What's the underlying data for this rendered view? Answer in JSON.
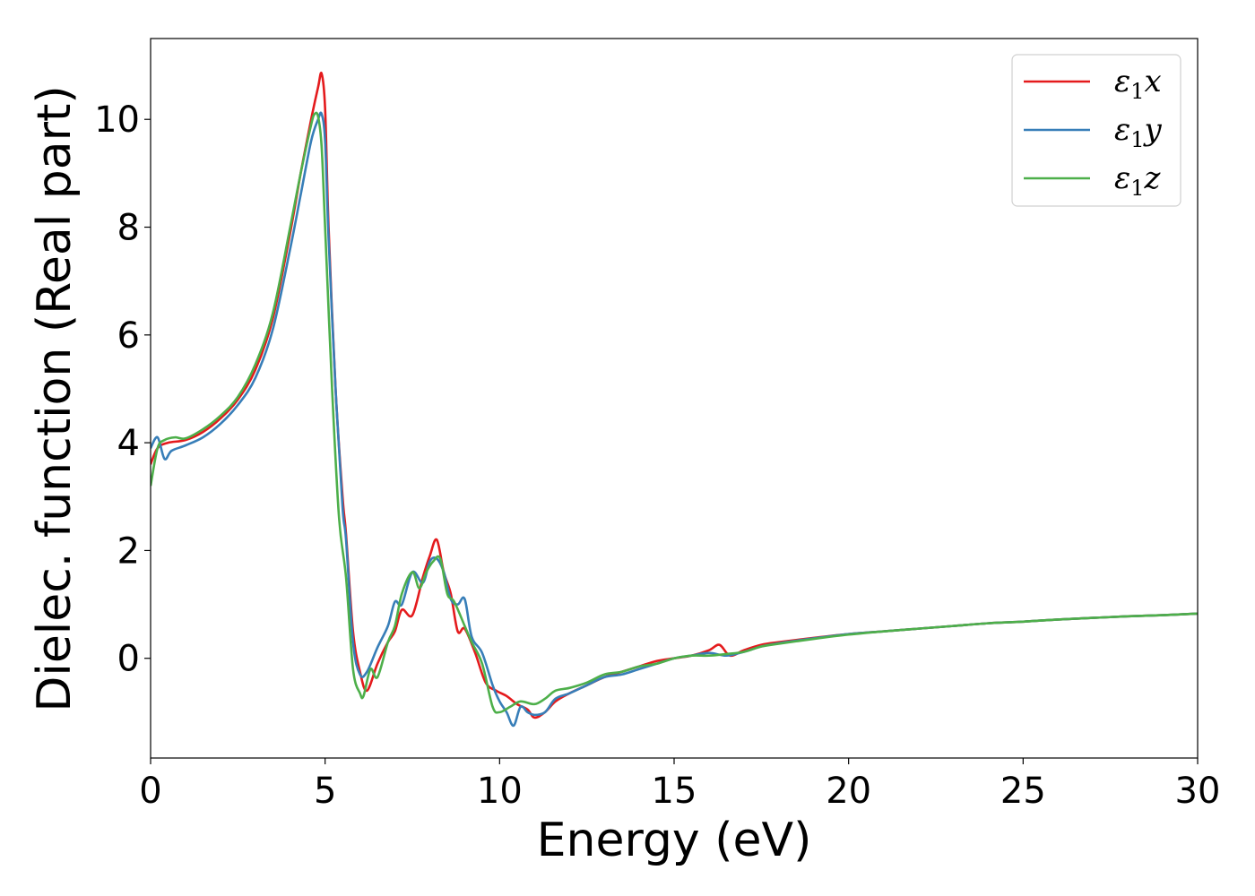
{
  "chart_data": {
    "type": "line",
    "title": "",
    "xlabel": "Energy (eV)",
    "ylabel": "Dielec. function (Real part)",
    "xlim": [
      0,
      30
    ],
    "ylim": [
      -1.85,
      11.5
    ],
    "xticks": [
      0,
      5,
      10,
      15,
      20,
      25,
      30
    ],
    "xtick_labels": [
      "0",
      "5",
      "10",
      "15",
      "20",
      "25",
      "30"
    ],
    "yticks": [
      0,
      2,
      4,
      6,
      8,
      10
    ],
    "ytick_labels": [
      "0",
      "2",
      "4",
      "6",
      "8",
      "10"
    ],
    "grid": false,
    "legend_position": "top-right",
    "series": [
      {
        "name": "ε1x",
        "legend": {
          "symbol": "ε",
          "sub": "1",
          "axis": "x"
        },
        "color": "#e41a1c",
        "x": [
          0,
          0.2,
          0.5,
          1.0,
          1.5,
          2.0,
          2.5,
          3.0,
          3.5,
          4.0,
          4.3,
          4.6,
          4.8,
          4.9,
          5.0,
          5.1,
          5.3,
          5.5,
          5.6,
          5.8,
          6.0,
          6.2,
          6.5,
          6.8,
          7.0,
          7.2,
          7.5,
          7.8,
          8.0,
          8.2,
          8.4,
          8.6,
          8.8,
          9.0,
          9.3,
          9.6,
          9.9,
          10.2,
          10.5,
          10.8,
          11.0,
          11.3,
          11.6,
          12.0,
          12.5,
          13.0,
          13.5,
          14.0,
          14.5,
          15.0,
          15.5,
          16.0,
          16.3,
          16.6,
          17.0,
          17.5,
          18.0,
          19.0,
          20.0,
          21.0,
          22.0,
          23.0,
          24.0,
          25.0,
          26.0,
          27.0,
          28.0,
          29.0,
          30.0
        ],
        "y": [
          3.6,
          3.9,
          4.0,
          4.05,
          4.2,
          4.45,
          4.8,
          5.35,
          6.3,
          7.9,
          9.0,
          10.0,
          10.6,
          10.85,
          10.2,
          8.0,
          5.0,
          3.0,
          2.3,
          0.5,
          -0.25,
          -0.6,
          -0.1,
          0.3,
          0.5,
          0.9,
          0.8,
          1.5,
          1.9,
          2.2,
          1.6,
          1.2,
          0.5,
          0.55,
          0.1,
          -0.45,
          -0.6,
          -0.7,
          -0.85,
          -0.95,
          -1.1,
          -1.0,
          -0.8,
          -0.65,
          -0.5,
          -0.35,
          -0.25,
          -0.15,
          -0.05,
          0.0,
          0.05,
          0.15,
          0.25,
          0.05,
          0.15,
          0.25,
          0.3,
          0.38,
          0.45,
          0.5,
          0.55,
          0.6,
          0.65,
          0.68,
          0.72,
          0.75,
          0.78,
          0.8,
          0.83
        ]
      },
      {
        "name": "ε1y",
        "legend": {
          "symbol": "ε",
          "sub": "1",
          "axis": "y"
        },
        "color": "#377eb8",
        "x": [
          0,
          0.2,
          0.4,
          0.6,
          1.0,
          1.5,
          2.0,
          2.5,
          3.0,
          3.5,
          4.0,
          4.3,
          4.6,
          4.8,
          4.9,
          5.0,
          5.1,
          5.3,
          5.5,
          5.6,
          5.8,
          6.0,
          6.2,
          6.5,
          6.8,
          7.0,
          7.2,
          7.5,
          7.8,
          8.0,
          8.2,
          8.4,
          8.6,
          8.8,
          9.0,
          9.2,
          9.5,
          9.8,
          10.0,
          10.2,
          10.4,
          10.6,
          10.8,
          11.0,
          11.3,
          11.6,
          12.0,
          12.5,
          13.0,
          13.5,
          14.0,
          14.5,
          15.0,
          15.5,
          16.0,
          16.5,
          17.0,
          17.5,
          18.0,
          19.0,
          20.0,
          21.0,
          22.0,
          23.0,
          24.0,
          25.0,
          26.0,
          27.0,
          28.0,
          29.0,
          30.0
        ],
        "y": [
          3.9,
          4.1,
          3.7,
          3.85,
          3.95,
          4.1,
          4.35,
          4.7,
          5.2,
          6.1,
          7.6,
          8.6,
          9.6,
          10.0,
          10.1,
          9.6,
          7.8,
          5.0,
          2.8,
          2.2,
          0.3,
          -0.3,
          -0.25,
          0.2,
          0.6,
          1.05,
          1.0,
          1.6,
          1.4,
          1.8,
          1.85,
          1.6,
          1.1,
          1.0,
          1.1,
          0.4,
          0.1,
          -0.5,
          -0.8,
          -1.0,
          -1.25,
          -0.9,
          -1.0,
          -1.05,
          -1.0,
          -0.75,
          -0.65,
          -0.5,
          -0.35,
          -0.3,
          -0.2,
          -0.1,
          0.0,
          0.05,
          0.1,
          0.05,
          0.12,
          0.22,
          0.28,
          0.37,
          0.45,
          0.5,
          0.55,
          0.6,
          0.65,
          0.68,
          0.72,
          0.75,
          0.78,
          0.8,
          0.83
        ]
      },
      {
        "name": "ε1z",
        "legend": {
          "symbol": "ε",
          "sub": "1",
          "axis": "z"
        },
        "color": "#4daf4a",
        "x": [
          0,
          0.2,
          0.4,
          0.7,
          1.0,
          1.5,
          2.0,
          2.5,
          3.0,
          3.5,
          4.0,
          4.3,
          4.6,
          4.7,
          4.8,
          4.9,
          5.0,
          5.2,
          5.4,
          5.6,
          5.8,
          6.0,
          6.1,
          6.3,
          6.5,
          6.8,
          7.0,
          7.2,
          7.5,
          7.7,
          7.9,
          8.1,
          8.3,
          8.5,
          8.7,
          9.0,
          9.2,
          9.5,
          9.8,
          10.0,
          10.3,
          10.6,
          11.0,
          11.3,
          11.6,
          12.0,
          12.5,
          13.0,
          13.5,
          14.0,
          14.5,
          15.0,
          15.5,
          16.0,
          16.5,
          17.0,
          17.5,
          18.0,
          19.0,
          20.0,
          21.0,
          22.0,
          23.0,
          24.0,
          25.0,
          26.0,
          27.0,
          28.0,
          29.0,
          30.0
        ],
        "y": [
          3.2,
          3.9,
          4.05,
          4.1,
          4.08,
          4.25,
          4.5,
          4.85,
          5.45,
          6.4,
          8.0,
          9.0,
          9.9,
          10.1,
          10.05,
          9.5,
          8.0,
          5.0,
          2.6,
          1.5,
          -0.2,
          -0.65,
          -0.7,
          -0.2,
          -0.35,
          0.3,
          0.6,
          1.2,
          1.6,
          1.3,
          1.6,
          1.8,
          1.85,
          1.2,
          1.05,
          0.6,
          0.3,
          -0.1,
          -0.9,
          -1.0,
          -0.9,
          -0.8,
          -0.85,
          -0.75,
          -0.6,
          -0.55,
          -0.45,
          -0.3,
          -0.25,
          -0.15,
          -0.1,
          0.0,
          0.05,
          0.05,
          0.08,
          0.12,
          0.22,
          0.27,
          0.36,
          0.44,
          0.5,
          0.55,
          0.6,
          0.65,
          0.68,
          0.72,
          0.75,
          0.78,
          0.8,
          0.83
        ]
      }
    ]
  }
}
